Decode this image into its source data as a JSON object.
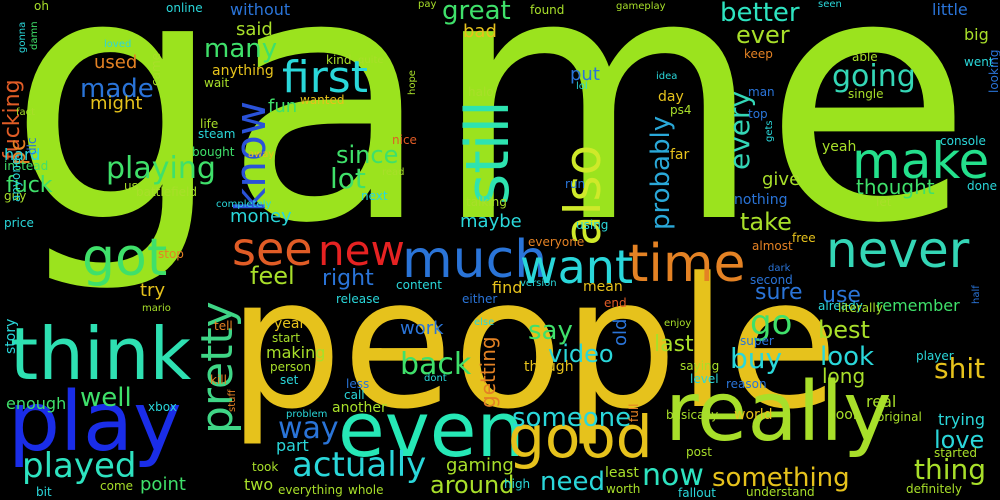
{
  "background": "#000000",
  "words": [
    {
      "text": "game",
      "color": "#9be31e",
      "weight": 1.0
    },
    {
      "text": "people",
      "color": "#e6c21c",
      "weight": 0.62
    },
    {
      "text": "really",
      "color": "#a8df2a",
      "weight": 0.3
    },
    {
      "text": "play",
      "color": "#1a2de8",
      "weight": 0.28
    },
    {
      "text": "think",
      "color": "#2ee0b2",
      "weight": 0.26
    },
    {
      "text": "even",
      "color": "#26e8b6",
      "weight": 0.27
    },
    {
      "text": "good",
      "color": "#e6c21c",
      "weight": 0.2
    },
    {
      "text": "still",
      "color": "#2ee3b0",
      "weight": 0.2
    },
    {
      "text": "also",
      "color": "#cfe92a",
      "weight": 0.17
    },
    {
      "text": "much",
      "color": "#2a74d8",
      "weight": 0.18
    },
    {
      "text": "time",
      "color": "#e48224",
      "weight": 0.17
    },
    {
      "text": "make",
      "color": "#24e08c",
      "weight": 0.16
    },
    {
      "text": "never",
      "color": "#34d6b6",
      "weight": 0.16
    },
    {
      "text": "got",
      "color": "#3fe06a",
      "weight": 0.15
    },
    {
      "text": "want",
      "color": "#2ad7da",
      "weight": 0.15
    },
    {
      "text": "first",
      "color": "#2ad7da",
      "weight": 0.14
    },
    {
      "text": "see",
      "color": "#e05c26",
      "weight": 0.12
    },
    {
      "text": "new",
      "color": "#e62222",
      "weight": 0.12
    },
    {
      "text": "know",
      "color": "#2a52d8",
      "weight": 0.12
    },
    {
      "text": "pretty",
      "color": "#3fd686",
      "weight": 0.12
    },
    {
      "text": "actually",
      "color": "#2ad7da",
      "weight": 0.1
    },
    {
      "text": "played",
      "color": "#2ee3c0",
      "weight": 0.1
    },
    {
      "text": "way",
      "color": "#2a74d8",
      "weight": 0.09
    },
    {
      "text": "go",
      "color": "#3fe06a",
      "weight": 0.09
    },
    {
      "text": "going",
      "color": "#34d6b6",
      "weight": 0.09
    },
    {
      "text": "probably",
      "color": "#2aa8d8",
      "weight": 0.07
    },
    {
      "text": "playing",
      "color": "#3fe06a",
      "weight": 0.08
    },
    {
      "text": "every",
      "color": "#34d6b6",
      "weight": 0.07
    },
    {
      "text": "now",
      "color": "#2ee3c0",
      "weight": 0.08
    },
    {
      "text": "shit",
      "color": "#e6c21c",
      "weight": 0.07
    },
    {
      "text": "back",
      "color": "#3fe06a",
      "weight": 0.07
    },
    {
      "text": "well",
      "color": "#3fe06a",
      "weight": 0.07
    },
    {
      "text": "something",
      "color": "#e6c21c",
      "weight": 0.07
    },
    {
      "text": "someone",
      "color": "#2ad7da",
      "weight": 0.07
    },
    {
      "text": "thing",
      "color": "#a8df2a",
      "weight": 0.07
    },
    {
      "text": "buy",
      "color": "#2ad7da",
      "weight": 0.07
    },
    {
      "text": "lot",
      "color": "#3fe06a",
      "weight": 0.07
    },
    {
      "text": "made",
      "color": "#2a74d8",
      "weight": 0.07
    },
    {
      "text": "many",
      "color": "#3fe06a",
      "weight": 0.07
    },
    {
      "text": "great",
      "color": "#3fe06a",
      "weight": 0.07
    },
    {
      "text": "better",
      "color": "#2ee3c0",
      "weight": 0.07
    },
    {
      "text": "since",
      "color": "#3fe06a",
      "weight": 0.07
    },
    {
      "text": "look",
      "color": "#2ad7da",
      "weight": 0.07
    },
    {
      "text": "best",
      "color": "#a8df2a",
      "weight": 0.07
    },
    {
      "text": "love",
      "color": "#2ad7da",
      "weight": 0.07
    },
    {
      "text": "need",
      "color": "#2ad7da",
      "weight": 0.07
    },
    {
      "text": "say",
      "color": "#3fe06a",
      "weight": 0.07
    },
    {
      "text": "feel",
      "color": "#a8df2a",
      "weight": 0.06
    },
    {
      "text": "take",
      "color": "#a8df2a",
      "weight": 0.06
    },
    {
      "text": "ever",
      "color": "#a8df2a",
      "weight": 0.06
    },
    {
      "text": "right",
      "color": "#2a74d8",
      "weight": 0.06
    },
    {
      "text": "sure",
      "color": "#2a74d8",
      "weight": 0.06
    },
    {
      "text": "use",
      "color": "#2a74d8",
      "weight": 0.06
    },
    {
      "text": "video",
      "color": "#2ad7da",
      "weight": 0.06
    },
    {
      "text": "around",
      "color": "#a8df2a",
      "weight": 0.06
    },
    {
      "text": "last",
      "color": "#a8df2a",
      "weight": 0.05
    },
    {
      "text": "fuck",
      "color": "#3fe06a",
      "weight": 0.05
    },
    {
      "text": "fucking",
      "color": "#e05c26",
      "weight": 0.05
    },
    {
      "text": "pc",
      "color": "#e48224",
      "weight": 0.05
    },
    {
      "text": "thought",
      "color": "#3fe06a",
      "weight": 0.05
    },
    {
      "text": "give",
      "color": "#a8df2a",
      "weight": 0.05
    },
    {
      "text": "different",
      "color": "#a8df2a",
      "weight": 0.05
    },
    {
      "text": "long",
      "color": "#a8df2a",
      "weight": 0.05
    },
    {
      "text": "getting",
      "color": "#e48224",
      "weight": 0.05
    },
    {
      "text": "gaming",
      "color": "#a8df2a",
      "weight": 0.05
    },
    {
      "text": "work",
      "color": "#2a74d8",
      "weight": 0.05
    },
    {
      "text": "point",
      "color": "#3fe06a",
      "weight": 0.05
    },
    {
      "text": "old",
      "color": "#2a74d8",
      "weight": 0.05
    },
    {
      "text": "mean",
      "color": "#e6c21c",
      "weight": 0.04
    },
    {
      "text": "find",
      "color": "#e6c21c",
      "weight": 0.05
    },
    {
      "text": "maybe",
      "color": "#2ad7da",
      "weight": 0.05
    },
    {
      "text": "money",
      "color": "#2ad7da",
      "weight": 0.05
    },
    {
      "text": "try",
      "color": "#e6c21c",
      "weight": 0.05
    },
    {
      "text": "fun",
      "color": "#3fe06a",
      "weight": 0.05
    },
    {
      "text": "used",
      "color": "#e48224",
      "weight": 0.05
    },
    {
      "text": "might",
      "color": "#e6c21c",
      "weight": 0.05
    },
    {
      "text": "put",
      "color": "#2a74d8",
      "weight": 0.05
    },
    {
      "text": "bad",
      "color": "#e6c21c",
      "weight": 0.05
    },
    {
      "text": "said",
      "color": "#a8df2a",
      "weight": 0.05
    },
    {
      "text": "without",
      "color": "#2a74d8",
      "weight": 0.05
    },
    {
      "text": "little",
      "color": "#2a74d8",
      "weight": 0.05
    },
    {
      "text": "big",
      "color": "#a8df2a",
      "weight": 0.04
    },
    {
      "text": "enough",
      "color": "#3fe06a",
      "weight": 0.04
    },
    {
      "text": "hard",
      "color": "#2ad7da",
      "weight": 0.04
    },
    {
      "text": "two",
      "color": "#a8df2a",
      "weight": 0.04
    },
    {
      "text": "part",
      "color": "#2ad7da",
      "weight": 0.04
    },
    {
      "text": "making",
      "color": "#a8df2a",
      "weight": 0.04
    },
    {
      "text": "year",
      "color": "#e6c21c",
      "weight": 0.04
    },
    {
      "text": "another",
      "color": "#a8df2a",
      "weight": 0.04
    },
    {
      "text": "remember",
      "color": "#3fe06a",
      "weight": 0.04
    },
    {
      "text": "already",
      "color": "#2ad7da",
      "weight": 0.04
    },
    {
      "text": "trying",
      "color": "#2ad7da",
      "weight": 0.04
    },
    {
      "text": "real",
      "color": "#a8df2a",
      "weight": 0.04
    },
    {
      "text": "world",
      "color": "#e6c21c",
      "weight": 0.04
    },
    {
      "text": "nothing",
      "color": "#2a74d8",
      "weight": 0.04
    },
    {
      "text": "anything",
      "color": "#e6c21c",
      "weight": 0.04
    },
    {
      "text": "day",
      "color": "#e6c21c",
      "weight": 0.04
    },
    {
      "text": "yeah",
      "color": "#a8df2a",
      "weight": 0.04
    },
    {
      "text": "story",
      "color": "#2ad7da",
      "weight": 0.04
    },
    {
      "text": "player",
      "color": "#2ad7da",
      "weight": 0.03
    },
    {
      "text": "xbox",
      "color": "#2ad7da",
      "weight": 0.03
    },
    {
      "text": "cool",
      "color": "#a8df2a",
      "weight": 0.03
    },
    {
      "text": "far",
      "color": "#e6c21c",
      "weight": 0.03
    },
    {
      "text": "halo",
      "color": "#a8df2a",
      "weight": 0.03
    },
    {
      "text": "ps4",
      "color": "#a8df2a",
      "weight": 0.03
    },
    {
      "text": "life",
      "color": "#a8df2a",
      "weight": 0.03
    },
    {
      "text": "steam",
      "color": "#2ad7da",
      "weight": 0.03
    },
    {
      "text": "bought",
      "color": "#3fe06a",
      "weight": 0.03
    },
    {
      "text": "instead",
      "color": "#3fe06a",
      "weight": 0.03
    },
    {
      "text": "guy",
      "color": "#a8df2a",
      "weight": 0.03
    },
    {
      "text": "anyone",
      "color": "#2ad7da",
      "weight": 0.03
    },
    {
      "text": "price",
      "color": "#2ad7da",
      "weight": 0.03
    },
    {
      "text": "oh",
      "color": "#a8df2a",
      "weight": 0.03
    },
    {
      "text": "damn",
      "color": "#3fe06a",
      "weight": 0.02
    },
    {
      "text": "gonna",
      "color": "#2ad7da",
      "weight": 0.02
    },
    {
      "text": "fact",
      "color": "#a8df2a",
      "weight": 0.02
    },
    {
      "text": "dlc",
      "color": "#2a74d8",
      "weight": 0.03
    },
    {
      "text": "loved",
      "color": "#2ad7da",
      "weight": 0.02
    },
    {
      "text": "came",
      "color": "#a8df2a",
      "weight": 0.02
    },
    {
      "text": "kind",
      "color": "#a8df2a",
      "weight": 0.03
    },
    {
      "text": "quite",
      "color": "#a8df2a",
      "weight": 0.02
    },
    {
      "text": "wait",
      "color": "#a8df2a",
      "weight": 0.03
    },
    {
      "text": "wanted",
      "color": "#e6c21c",
      "weight": 0.02
    },
    {
      "text": "hope",
      "color": "#a8df2a",
      "weight": 0.02
    },
    {
      "text": "online",
      "color": "#2ad7da",
      "weight": 0.02
    },
    {
      "text": "pay",
      "color": "#a8df2a",
      "weight": 0.02
    },
    {
      "text": "found",
      "color": "#a8df2a",
      "weight": 0.02
    },
    {
      "text": "gameplay",
      "color": "#a8df2a",
      "weight": 0.02
    },
    {
      "text": "seen",
      "color": "#2ad7da",
      "weight": 0.02
    },
    {
      "text": "keep",
      "color": "#e48224",
      "weight": 0.02
    },
    {
      "text": "able",
      "color": "#a8df2a",
      "weight": 0.02
    },
    {
      "text": "went",
      "color": "#2ad7da",
      "weight": 0.02
    },
    {
      "text": "idea",
      "color": "#2ad7da",
      "weight": 0.02
    },
    {
      "text": "lol",
      "color": "#2ad7da",
      "weight": 0.02
    },
    {
      "text": "man",
      "color": "#2a74d8",
      "weight": 0.02
    },
    {
      "text": "single",
      "color": "#a8df2a",
      "weight": 0.02
    },
    {
      "text": "top",
      "color": "#2a74d8",
      "weight": 0.02
    },
    {
      "text": "looking",
      "color": "#2a74d8",
      "weight": 0.02
    },
    {
      "text": "console",
      "color": "#2ad7da",
      "weight": 0.02
    },
    {
      "text": "gets",
      "color": "#2ad7da",
      "weight": 0.02
    },
    {
      "text": "done",
      "color": "#2ad7da",
      "weight": 0.02
    },
    {
      "text": "let",
      "color": "#a8df2a",
      "weight": 0.02
    },
    {
      "text": "nice",
      "color": "#e05c26",
      "weight": 0.02
    },
    {
      "text": "away",
      "color": "#e6c21c",
      "weight": 0.02
    },
    {
      "text": "read",
      "color": "#a8df2a",
      "weight": 0.02
    },
    {
      "text": "run",
      "color": "#2a74d8",
      "weight": 0.02
    },
    {
      "text": "completely",
      "color": "#2ad7da",
      "weight": 0.02
    },
    {
      "text": "next",
      "color": "#2ad7da",
      "weight": 0.02
    },
    {
      "text": "talking",
      "color": "#a8df2a",
      "weight": 0.02
    },
    {
      "text": "using",
      "color": "#2ad7da",
      "weight": 0.02
    },
    {
      "text": "battlefield",
      "color": "#a8df2a",
      "weight": 0.02
    },
    {
      "text": "us",
      "color": "#a8df2a",
      "weight": 0.02
    },
    {
      "text": "everyone",
      "color": "#e48224",
      "weight": 0.02
    },
    {
      "text": "almost",
      "color": "#e48224",
      "weight": 0.02
    },
    {
      "text": "free",
      "color": "#e6c21c",
      "weight": 0.02
    },
    {
      "text": "stop",
      "color": "#e48224",
      "weight": 0.02
    },
    {
      "text": "mario",
      "color": "#a8df2a",
      "weight": 0.02
    },
    {
      "text": "dark",
      "color": "#2a74d8",
      "weight": 0.02
    },
    {
      "text": "second",
      "color": "#2a74d8",
      "weight": 0.02
    },
    {
      "text": "literally",
      "color": "#a8df2a",
      "weight": 0.02
    },
    {
      "text": "half",
      "color": "#2a74d8",
      "weight": 0.02
    },
    {
      "text": "content",
      "color": "#2ad7da",
      "weight": 0.02
    },
    {
      "text": "version",
      "color": "#2ad7da",
      "weight": 0.02
    },
    {
      "text": "release",
      "color": "#2ad7da",
      "weight": 0.02
    },
    {
      "text": "either",
      "color": "#2a74d8",
      "weight": 0.02
    },
    {
      "text": "end",
      "color": "#e05c26",
      "weight": 0.02
    },
    {
      "text": "tell",
      "color": "#e48224",
      "weight": 0.02
    },
    {
      "text": "else",
      "color": "#2ad7da",
      "weight": 0.02
    },
    {
      "text": "enjoy",
      "color": "#a8df2a",
      "weight": 0.02
    },
    {
      "text": "start",
      "color": "#a8df2a",
      "weight": 0.02
    },
    {
      "text": "person",
      "color": "#a8df2a",
      "weight": 0.02
    },
    {
      "text": "super",
      "color": "#2a74d8",
      "weight": 0.02
    },
    {
      "text": "kill",
      "color": "#e48224",
      "weight": 0.02
    },
    {
      "text": "set",
      "color": "#2ad7da",
      "weight": 0.02
    },
    {
      "text": "less",
      "color": "#2a74d8",
      "weight": 0.02
    },
    {
      "text": "call",
      "color": "#2ad7da",
      "weight": 0.02
    },
    {
      "text": "dont",
      "color": "#2ad7da",
      "weight": 0.02
    },
    {
      "text": "though",
      "color": "#e6c21c",
      "weight": 0.02
    },
    {
      "text": "saying",
      "color": "#a8df2a",
      "weight": 0.02
    },
    {
      "text": "level",
      "color": "#2ad7da",
      "weight": 0.02
    },
    {
      "text": "reason",
      "color": "#2a74d8",
      "weight": 0.02
    },
    {
      "text": "problem",
      "color": "#2ad7da",
      "weight": 0.02
    },
    {
      "text": "stuff",
      "color": "#e48224",
      "weight": 0.02
    },
    {
      "text": "took",
      "color": "#a8df2a",
      "weight": 0.02
    },
    {
      "text": "come",
      "color": "#a8df2a",
      "weight": 0.02
    },
    {
      "text": "everything",
      "color": "#a8df2a",
      "weight": 0.02
    },
    {
      "text": "whole",
      "color": "#a8df2a",
      "weight": 0.02
    },
    {
      "text": "high",
      "color": "#2ad7da",
      "weight": 0.02
    },
    {
      "text": "worth",
      "color": "#a8df2a",
      "weight": 0.02
    },
    {
      "text": "least",
      "color": "#a8df2a",
      "weight": 0.02
    },
    {
      "text": "full",
      "color": "#e48224",
      "weight": 0.02
    },
    {
      "text": "basically",
      "color": "#a8df2a",
      "weight": 0.02
    },
    {
      "text": "post",
      "color": "#a8df2a",
      "weight": 0.02
    },
    {
      "text": "fallout",
      "color": "#2ad7da",
      "weight": 0.02
    },
    {
      "text": "understand",
      "color": "#a8df2a",
      "weight": 0.02
    },
    {
      "text": "original",
      "color": "#a8df2a",
      "weight": 0.02
    },
    {
      "text": "started",
      "color": "#a8df2a",
      "weight": 0.02
    },
    {
      "text": "definitely",
      "color": "#a8df2a",
      "weight": 0.02
    },
    {
      "text": "bit",
      "color": "#2ad7da",
      "weight": 0.02
    }
  ]
}
